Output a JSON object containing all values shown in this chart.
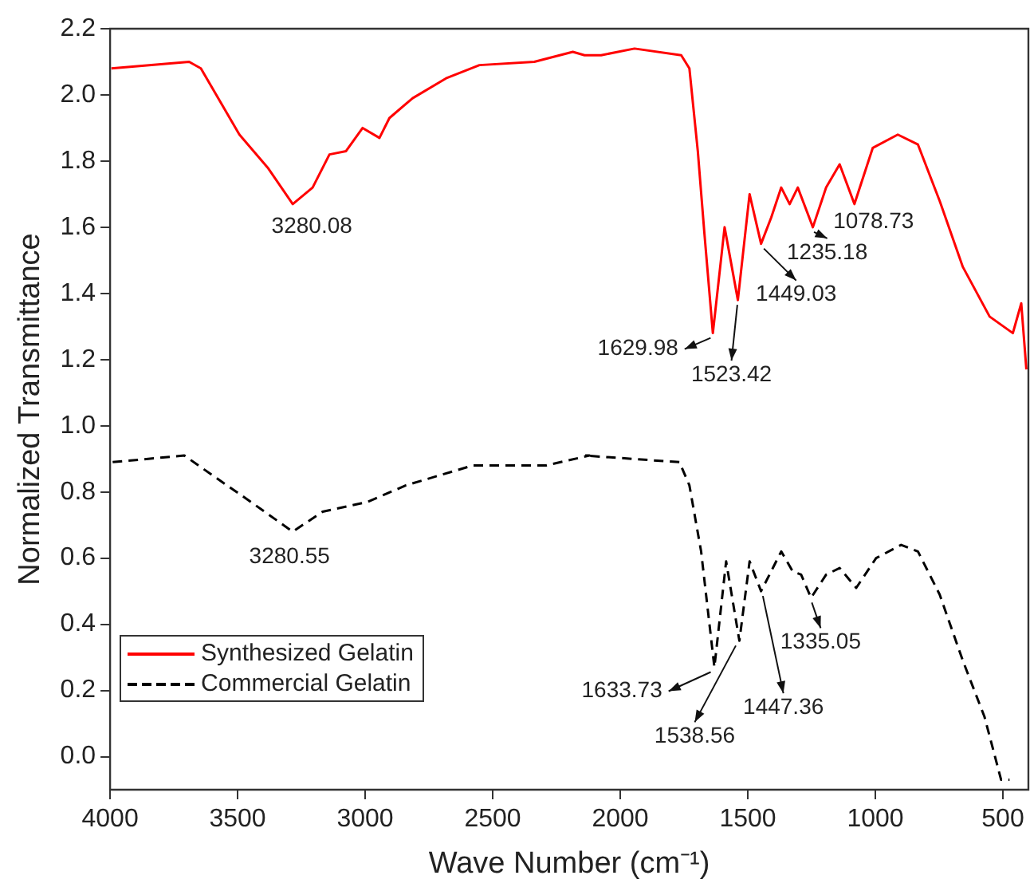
{
  "chart_data": {
    "type": "line",
    "xlabel": "Wave Number (cm⁻¹)",
    "ylabel": "Normalized Transmittance",
    "xlim": [
      4000,
      400
    ],
    "xticks": [
      4000,
      3500,
      3000,
      2500,
      2000,
      1500,
      1000,
      500
    ],
    "ylim": [
      -0.1,
      2.2
    ],
    "yticks": [
      {
        "value": 0,
        "label": "0.0"
      },
      {
        "value": 0.2,
        "label": "0.2"
      },
      {
        "value": 0.4,
        "label": "0.4"
      },
      {
        "value": 0.6,
        "label": "0.6"
      },
      {
        "value": 0.8,
        "label": "0.8"
      },
      {
        "value": 1,
        "label": "1.0"
      },
      {
        "value": 1.2,
        "label": "1.2"
      },
      {
        "value": 1.4,
        "label": "1.4"
      },
      {
        "value": 1.6,
        "label": "1.6"
      },
      {
        "value": 1.8,
        "label": "1.8"
      },
      {
        "value": 2,
        "label": "2.0"
      },
      {
        "value": 2.2,
        "label": "2.2"
      }
    ],
    "grid": false,
    "legend": "bottom left",
    "series": [
      {
        "name": "Synthesized Gelatin",
        "color": "#ff0000",
        "line_style": "solid",
        "x": [
          3995,
          3690,
          3644,
          3493,
          3382,
          3284,
          3206,
          3140,
          3075,
          3010,
          2944,
          2905,
          2814,
          2683,
          2552,
          2337,
          2186,
          2140,
          2075,
          1944,
          1761,
          1729,
          1696,
          1670,
          1637,
          1591,
          1539,
          1493,
          1448,
          1408,
          1369,
          1336,
          1304,
          1245,
          1193,
          1140,
          1082,
          1010,
          912,
          833,
          748,
          657,
          552,
          461,
          428,
          408
        ],
        "values": [
          2.08,
          2.1,
          2.08,
          1.88,
          1.78,
          1.67,
          1.72,
          1.82,
          1.83,
          1.9,
          1.87,
          1.93,
          1.99,
          2.05,
          2.09,
          2.1,
          2.13,
          2.12,
          2.12,
          2.14,
          2.12,
          2.08,
          1.83,
          1.58,
          1.28,
          1.6,
          1.38,
          1.7,
          1.55,
          1.63,
          1.72,
          1.67,
          1.72,
          1.6,
          1.72,
          1.79,
          1.67,
          1.84,
          1.88,
          1.85,
          1.68,
          1.48,
          1.33,
          1.28,
          1.37,
          1.17
        ]
      },
      {
        "name": "Commercial Gelatin",
        "color": "#000000",
        "line_style": "dashed",
        "x": [
          3990,
          3709,
          3598,
          3467,
          3284,
          3167,
          2990,
          2840,
          2578,
          2291,
          2121,
          2140,
          1768,
          1729,
          1683,
          1631,
          1585,
          1533,
          1493,
          1448,
          1369,
          1324,
          1291,
          1252,
          1193,
          1140,
          1075,
          997,
          899,
          833,
          748,
          657,
          572,
          507,
          474
        ],
        "values": [
          0.89,
          0.91,
          0.85,
          0.78,
          0.68,
          0.74,
          0.77,
          0.82,
          0.88,
          0.88,
          0.91,
          0.91,
          0.89,
          0.82,
          0.62,
          0.27,
          0.59,
          0.35,
          0.59,
          0.5,
          0.62,
          0.56,
          0.55,
          0.48,
          0.55,
          0.57,
          0.51,
          0.6,
          0.64,
          0.62,
          0.49,
          0.29,
          0.12,
          -0.07,
          -0.07
        ]
      }
    ],
    "annotations": [
      {
        "text": "3280.08",
        "x": 3284,
        "y": 1.67
      },
      {
        "text": "1629.98",
        "x": 1637,
        "y": 1.28
      },
      {
        "text": "1523.42",
        "x": 1539,
        "y": 1.38
      },
      {
        "text": "1449.03",
        "x": 1448,
        "y": 1.55
      },
      {
        "text": "1235.18",
        "x": 1245,
        "y": 1.6
      },
      {
        "text": "1078.73",
        "x": 1082,
        "y": 1.67
      },
      {
        "text": "3280.55",
        "x": 3284,
        "y": 0.68
      },
      {
        "text": "1633.73",
        "x": 1631,
        "y": 0.27
      },
      {
        "text": "1538.56",
        "x": 1533,
        "y": 0.35
      },
      {
        "text": "1447.36",
        "x": 1448,
        "y": 0.5
      },
      {
        "text": "1335.05",
        "x": 1252,
        "y": 0.48
      }
    ]
  }
}
